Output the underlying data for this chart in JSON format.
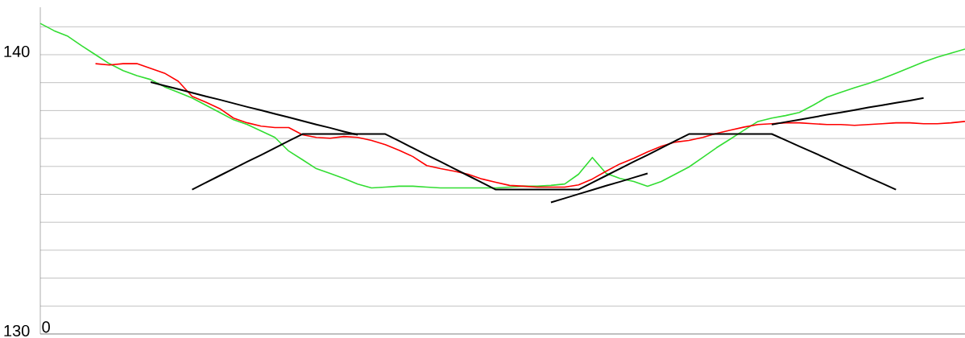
{
  "chart_data": {
    "type": "line",
    "ylim": [
      130,
      141.7
    ],
    "categories": [
      null,
      null,
      null,
      null,
      null,
      null,
      null,
      null,
      null,
      null,
      null,
      null,
      null,
      null,
      null,
      null,
      null,
      null,
      null,
      null,
      null,
      null,
      null,
      null,
      null,
      null,
      null,
      null,
      null,
      null,
      null,
      null,
      null,
      null,
      null,
      null,
      null,
      null,
      null,
      null,
      null,
      null,
      null,
      null,
      null,
      null,
      null,
      null,
      null,
      null,
      null,
      null,
      null,
      null,
      null,
      null,
      null,
      null,
      null,
      null,
      null,
      null,
      null,
      null,
      null,
      null,
      null,
      null
    ],
    "annotations": [
      "0"
    ],
    "yticks": [
      {
        "value": 130,
        "label": "130"
      },
      {
        "value": 131,
        "label": null
      },
      {
        "value": 132,
        "label": null
      },
      {
        "value": 133,
        "label": null
      },
      {
        "value": 134,
        "label": null
      },
      {
        "value": 135,
        "label": null
      },
      {
        "value": 136,
        "label": null
      },
      {
        "value": 137,
        "label": null
      },
      {
        "value": 138,
        "label": null
      },
      {
        "value": 139,
        "label": null
      },
      {
        "value": 140,
        "label": "140"
      },
      {
        "value": 141,
        "label": null
      }
    ],
    "grid": "y",
    "marker": "none",
    "line_style": "solid",
    "tick_labels": "y",
    "series": [
      {
        "color": "#33dd33",
        "values": [
          141.12,
          140.86,
          140.66,
          140.32,
          140.0,
          139.68,
          139.43,
          139.25,
          139.11,
          138.85,
          138.65,
          138.45,
          138.19,
          137.93,
          137.67,
          137.5,
          137.27,
          137.04,
          136.55,
          136.24,
          135.92,
          135.75,
          135.57,
          135.37,
          135.23,
          135.26,
          135.29,
          135.29,
          135.26,
          135.23,
          135.23,
          135.23,
          135.23,
          135.23,
          135.26,
          135.29,
          135.29,
          135.32,
          135.37,
          135.72,
          136.32,
          135.75,
          135.57,
          135.46,
          135.29,
          135.46,
          135.72,
          135.98,
          136.32,
          136.67,
          136.98,
          137.3,
          137.61,
          137.73,
          137.82,
          137.93,
          138.19,
          138.48,
          138.65,
          138.82,
          138.97,
          139.14,
          139.34,
          139.54,
          139.74,
          139.91,
          140.06,
          140.2
        ]
      },
      {
        "color": "#ff0000",
        "values": [
          null,
          null,
          null,
          null,
          139.68,
          139.63,
          139.68,
          139.68,
          139.51,
          139.34,
          139.05,
          138.51,
          138.3,
          138.07,
          137.73,
          137.56,
          137.44,
          137.39,
          137.39,
          137.13,
          137.04,
          137.01,
          137.07,
          137.04,
          136.93,
          136.78,
          136.58,
          136.35,
          136.03,
          135.92,
          135.83,
          135.72,
          135.55,
          135.43,
          135.32,
          135.29,
          135.26,
          135.26,
          135.26,
          135.34,
          135.55,
          135.83,
          136.09,
          136.29,
          136.52,
          136.72,
          136.87,
          136.93,
          137.04,
          137.18,
          137.3,
          137.41,
          137.5,
          137.53,
          137.56,
          137.56,
          137.53,
          137.5,
          137.5,
          137.47,
          137.5,
          137.53,
          137.56,
          137.56,
          137.53,
          137.53,
          137.56,
          137.61
        ]
      },
      {
        "color": "#000000",
        "values": [
          null,
          null,
          null,
          null,
          null,
          null,
          null,
          null,
          139.02,
          138.89,
          138.77,
          138.64,
          138.51,
          138.39,
          138.26,
          138.13,
          138.01,
          137.88,
          137.76,
          137.63,
          137.5,
          137.38,
          137.25,
          137.13,
          null,
          null,
          null,
          null,
          null,
          null,
          null,
          null,
          null,
          null,
          null,
          null,
          null,
          null,
          null,
          null,
          null,
          null,
          null,
          null,
          null,
          null,
          null,
          null,
          null,
          null,
          null,
          null,
          null,
          null,
          null,
          null,
          null,
          null,
          null,
          null,
          null,
          null,
          null,
          null,
          null,
          null,
          null,
          null
        ]
      },
      {
        "color": "#000000",
        "values": [
          null,
          null,
          null,
          null,
          null,
          null,
          null,
          null,
          null,
          null,
          null,
          135.17,
          135.42,
          135.67,
          135.92,
          136.17,
          136.41,
          136.66,
          136.91,
          137.16,
          137.16,
          137.16,
          137.16,
          137.16,
          137.16,
          137.16,
          136.91,
          136.66,
          136.41,
          136.17,
          135.92,
          135.67,
          135.42,
          135.17,
          135.17,
          135.17,
          135.17,
          135.17,
          135.17,
          135.17,
          135.42,
          135.67,
          135.92,
          136.17,
          136.41,
          136.66,
          136.91,
          137.16,
          137.16,
          137.16,
          137.16,
          137.16,
          137.16,
          137.16,
          136.94,
          136.72,
          136.5,
          136.28,
          136.05,
          135.83,
          135.61,
          135.39,
          135.17,
          null,
          null,
          null,
          null,
          null
        ]
      },
      {
        "color": "#000000",
        "values": [
          null,
          null,
          null,
          null,
          null,
          null,
          null,
          null,
          null,
          null,
          null,
          null,
          null,
          null,
          null,
          null,
          null,
          null,
          null,
          null,
          null,
          null,
          null,
          null,
          null,
          null,
          null,
          null,
          null,
          null,
          null,
          null,
          null,
          null,
          null,
          null,
          null,
          134.71,
          134.86,
          135.01,
          135.16,
          135.31,
          135.45,
          135.6,
          135.75,
          null,
          null,
          null,
          null,
          null,
          null,
          null,
          null,
          null,
          null,
          null,
          null,
          null,
          null,
          null,
          null,
          null,
          null,
          null,
          null,
          null,
          null,
          null
        ]
      },
      {
        "color": "#000000",
        "values": [
          null,
          null,
          null,
          null,
          null,
          null,
          null,
          null,
          null,
          null,
          null,
          null,
          null,
          null,
          null,
          null,
          null,
          null,
          null,
          null,
          null,
          null,
          null,
          null,
          null,
          null,
          null,
          null,
          null,
          null,
          null,
          null,
          null,
          null,
          null,
          null,
          null,
          null,
          null,
          null,
          null,
          null,
          null,
          null,
          null,
          null,
          null,
          null,
          null,
          null,
          null,
          null,
          null,
          137.5,
          137.59,
          137.67,
          137.76,
          137.85,
          137.93,
          138.02,
          138.11,
          138.19,
          138.28,
          138.36,
          138.45,
          null,
          null,
          null
        ]
      }
    ]
  }
}
